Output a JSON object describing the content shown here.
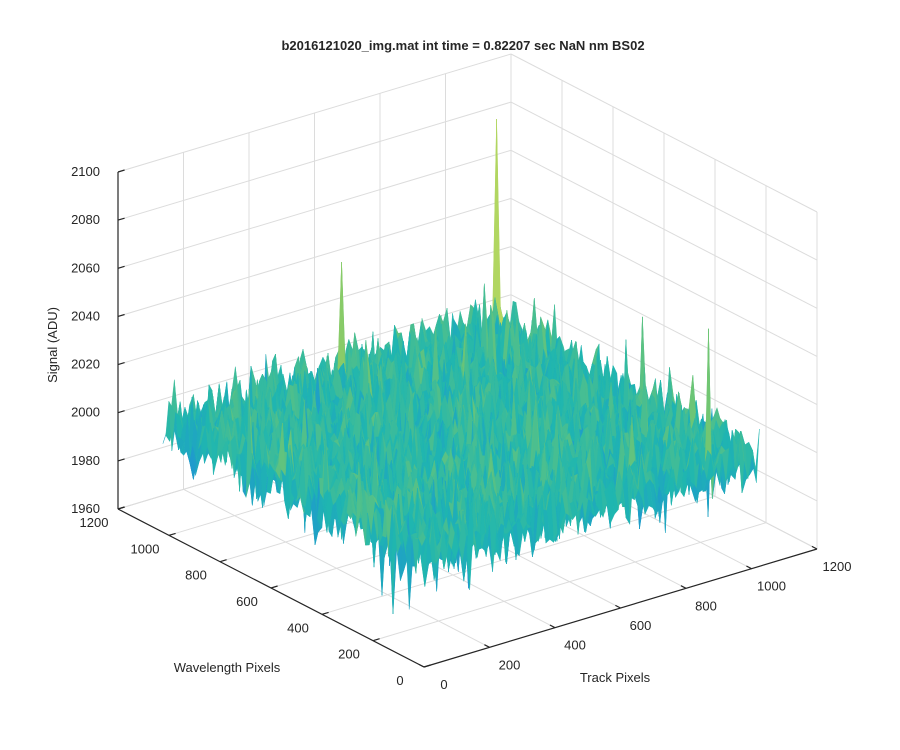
{
  "figure": {
    "title": "b2016121020_img.mat int time = 0.82207 sec  NaN nm BS02"
  },
  "chart_data": {
    "type": "surface",
    "title": "b2016121020_img.mat int time = 0.82207 sec  NaN nm BS02",
    "xlabel": "Track Pixels",
    "ylabel": "Wavelength Pixels",
    "zlabel": "Signal (ADU)",
    "xlim": [
      0,
      1200
    ],
    "ylim": [
      0,
      1200
    ],
    "zlim": [
      1960,
      2100
    ],
    "x_ticks": [
      0,
      200,
      400,
      600,
      800,
      1000,
      1200
    ],
    "y_ticks": [
      0,
      200,
      400,
      600,
      800,
      1000,
      1200
    ],
    "z_ticks": [
      1960,
      1980,
      2000,
      2020,
      2040,
      2060,
      2080,
      2100
    ],
    "data_extent": {
      "x": [
        0,
        1024
      ],
      "y": [
        0,
        1024
      ]
    },
    "signal_summary": {
      "baseline": 2005,
      "min": 1963,
      "max": 2092
    },
    "peaks": [
      {
        "x": 1000,
        "y": 1000,
        "z": 2092
      },
      {
        "x": 900,
        "y": 40,
        "z": 2062
      },
      {
        "x": 500,
        "y": 960,
        "z": 2055
      },
      {
        "x": 960,
        "y": 380,
        "z": 2045
      }
    ],
    "colormap": [
      "#0a3ee0",
      "#1f8fd8",
      "#1fb6b0",
      "#7cc86a",
      "#d6e05a"
    ],
    "grid": true
  }
}
